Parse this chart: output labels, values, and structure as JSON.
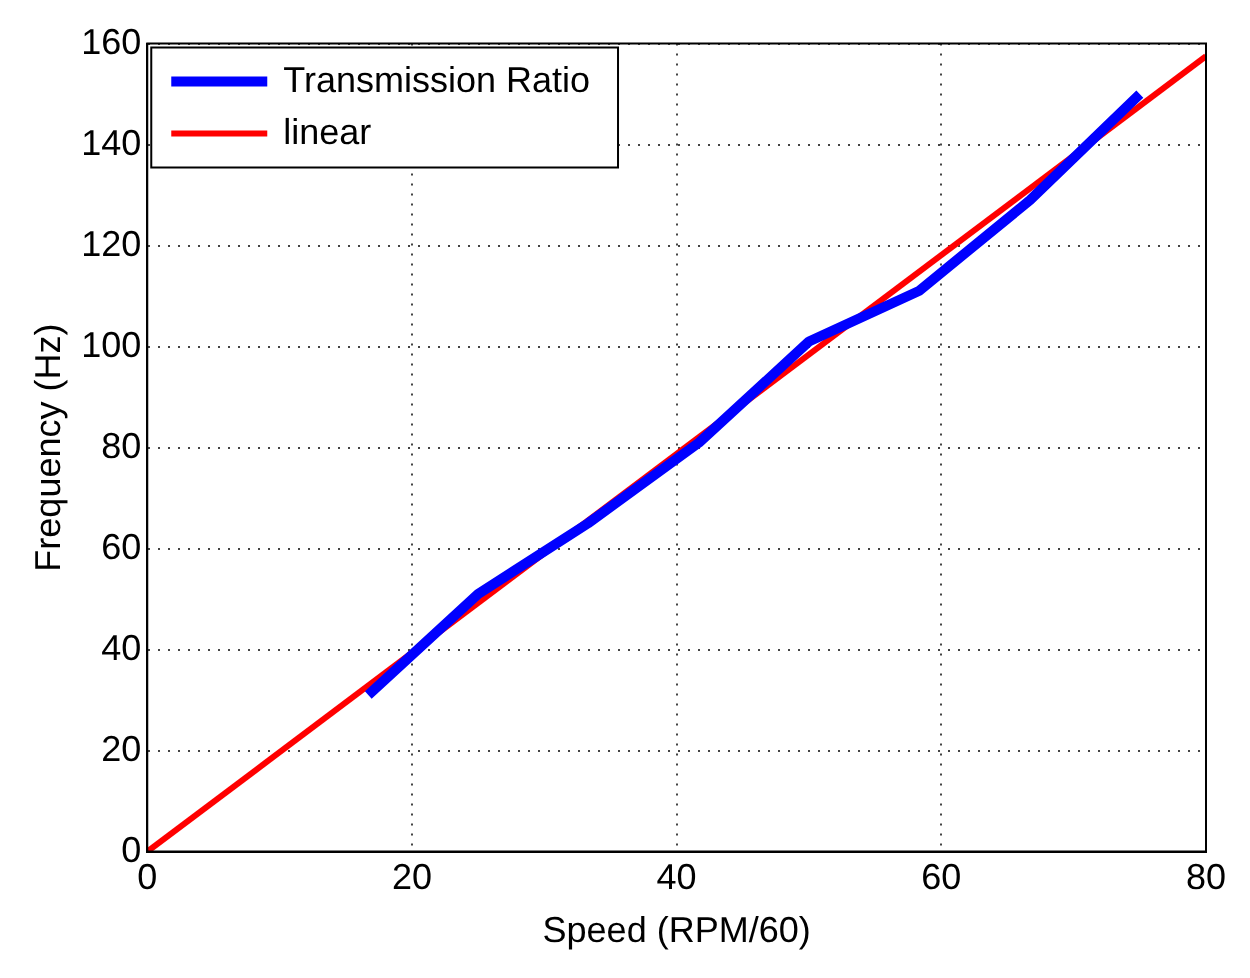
{
  "chart_data": {
    "type": "line",
    "xlabel": "Speed (RPM/60)",
    "ylabel": "Frequency (Hz)",
    "series": [
      {
        "name": "Transmission Ratio",
        "color": "#0000ff",
        "x": [
          16.7,
          25,
          33.3,
          41.7,
          50,
          58.3,
          66.7,
          75
        ],
        "values": [
          31,
          51,
          65,
          81,
          101,
          111,
          129,
          150
        ]
      },
      {
        "name": "linear",
        "color": "#ff0000",
        "x": [
          0,
          80
        ],
        "values": [
          0,
          157.5
        ]
      }
    ],
    "xlim": [
      0,
      80
    ],
    "xticks": [
      0,
      20,
      40,
      60,
      80
    ],
    "ylim": [
      0,
      160
    ],
    "yticks": [
      0,
      20,
      40,
      60,
      80,
      100,
      120,
      140,
      160
    ],
    "grid": true,
    "legend": "top left",
    "marker": "none",
    "line_style": "solid"
  }
}
